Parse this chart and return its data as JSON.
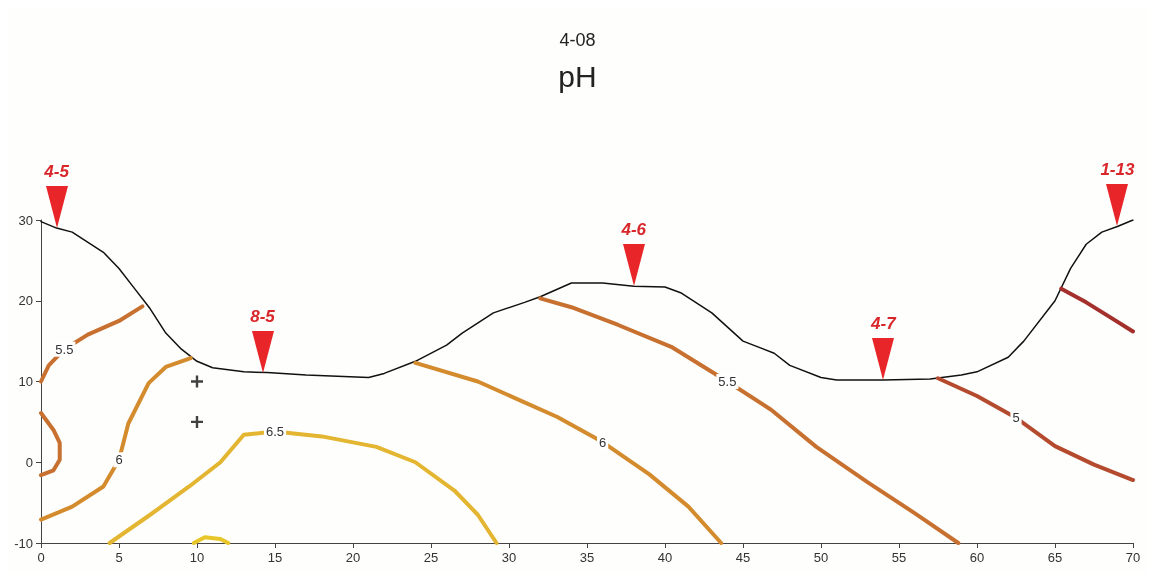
{
  "chart_data": {
    "type": "line",
    "title": "pH",
    "subtitle": "4-08",
    "legend": false,
    "grid": false,
    "xlim": [
      0,
      70
    ],
    "xticks": [
      0,
      5,
      10,
      15,
      20,
      25,
      30,
      35,
      40,
      45,
      50,
      55,
      60,
      65,
      70
    ],
    "ylim": [
      -10,
      30
    ],
    "yticks": [
      -10,
      0,
      10,
      20,
      30
    ],
    "annotations": [
      {
        "text": "4-5",
        "x": 1,
        "y": 29
      },
      {
        "text": "8-5",
        "x": 14.2,
        "y": 11.1
      },
      {
        "text": "4-6",
        "x": 38,
        "y": 21.8
      },
      {
        "text": "4-7",
        "x": 54,
        "y": 10.2
      },
      {
        "text": "1-13",
        "x": 69,
        "y": 29.2
      }
    ],
    "series": [
      {
        "color": "#111111",
        "marker": "none",
        "x": [
          0,
          1,
          2,
          4,
          5,
          6,
          7,
          8,
          9,
          10,
          11,
          13,
          14.5,
          17,
          21,
          22,
          24,
          26,
          27,
          29,
          31,
          32,
          34,
          36,
          38,
          40,
          41,
          43,
          45,
          47,
          48,
          50,
          51,
          54,
          57,
          59,
          60,
          62,
          63,
          65,
          66,
          67,
          68,
          69,
          70
        ],
        "values": [
          29.8,
          29,
          28.5,
          26,
          24,
          21.5,
          19,
          16,
          14,
          12.5,
          11.7,
          11.2,
          11.1,
          10.8,
          10.5,
          11,
          12.5,
          14.5,
          16,
          18.5,
          19.8,
          20.5,
          22.2,
          22.2,
          21.8,
          21.7,
          21,
          18.5,
          15,
          13.5,
          12,
          10.5,
          10.2,
          10.2,
          10.3,
          10.8,
          11.2,
          13,
          15,
          20,
          24,
          27,
          28.5,
          29.2,
          30
        ]
      },
      {
        "name": "5.5",
        "color": "#c7702f",
        "marker": "none",
        "x": [
          0,
          0.5,
          1.5,
          3,
          5,
          6.5,
          null,
          32,
          34,
          37,
          40.4,
          44,
          46.8,
          49.7,
          53,
          56,
          58.8
        ],
        "values": [
          10,
          12,
          14,
          15.8,
          17.5,
          19.3,
          null,
          20.3,
          19.2,
          17,
          14.3,
          10,
          6.5,
          1.9,
          -2.5,
          -6.3,
          -10
        ]
      },
      {
        "name": "6",
        "color": "#d48b2d",
        "marker": "none",
        "x": [
          0,
          2,
          4,
          5,
          5.6,
          6.9,
          8,
          9.6,
          null,
          24,
          28,
          33.1,
          36,
          39,
          41.5,
          43.6
        ],
        "values": [
          -7.1,
          -5.5,
          -3,
          0.3,
          4.8,
          9.8,
          11.8,
          12.9,
          null,
          12.3,
          10,
          5.6,
          2.5,
          -1.5,
          -5.5,
          -10
        ]
      },
      {
        "name": "6.5",
        "color": "#e3b531",
        "marker": "none",
        "x": [
          4.4,
          7,
          9.5,
          11.5,
          13,
          15,
          18,
          21.5,
          24,
          26.5,
          28,
          29.2
        ],
        "values": [
          -10,
          -6.5,
          -3,
          0,
          3.4,
          3.8,
          3.2,
          1.9,
          0,
          -3.5,
          -6.5,
          -10
        ]
      },
      {
        "name": "5",
        "color": "#b44a2e",
        "marker": "none",
        "x": [
          57.5,
          60,
          62.5,
          65,
          67.5,
          70
        ],
        "values": [
          10.4,
          8.2,
          5.5,
          2,
          -0.3,
          -2.2
        ]
      },
      {
        "color": "#a3302c",
        "marker": "none",
        "x": [
          65.4,
          67,
          68.5,
          70
        ],
        "values": [
          21.5,
          19.8,
          18,
          16.2
        ]
      },
      {
        "color": "#c7702f",
        "marker": "none",
        "x": [
          0,
          0.8,
          1.2,
          1.2,
          0.8,
          0
        ],
        "values": [
          6.1,
          4,
          2.4,
          0.3,
          -1,
          -1.6
        ]
      },
      {
        "color": "#e8c62a",
        "marker": "none",
        "x": [
          9.8,
          10.5,
          11.5,
          12
        ],
        "values": [
          -10,
          -9.3,
          -9.5,
          -10
        ]
      },
      {
        "type": "scatter",
        "color": "#111111",
        "marker": "cross",
        "x": [
          10,
          10
        ],
        "values": [
          10,
          5
        ]
      }
    ]
  }
}
